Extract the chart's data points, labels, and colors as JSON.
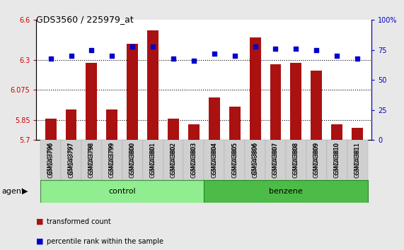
{
  "title": "GDS3560 / 225979_at",
  "samples": [
    "GSM243796",
    "GSM243797",
    "GSM243798",
    "GSM243799",
    "GSM243800",
    "GSM243801",
    "GSM243802",
    "GSM243803",
    "GSM243804",
    "GSM243805",
    "GSM243806",
    "GSM243807",
    "GSM243808",
    "GSM243809",
    "GSM243810",
    "GSM243811"
  ],
  "bar_values": [
    5.86,
    5.93,
    6.28,
    5.93,
    6.42,
    6.52,
    5.86,
    5.82,
    6.02,
    5.95,
    6.47,
    6.27,
    6.28,
    6.22,
    5.82,
    5.79
  ],
  "percentile_values": [
    68,
    70,
    75,
    70,
    78,
    78,
    68,
    66,
    72,
    70,
    78,
    76,
    76,
    75,
    70,
    68
  ],
  "ylim_left": [
    5.7,
    6.6
  ],
  "ylim_right": [
    0,
    100
  ],
  "yticks_left": [
    5.7,
    5.85,
    6.075,
    6.3,
    6.6
  ],
  "ytick_labels_left": [
    "5.7",
    "5.85",
    "6.075",
    "6.3",
    "6.6"
  ],
  "yticks_right": [
    0,
    25,
    50,
    75,
    100
  ],
  "ytick_labels_right": [
    "0",
    "25",
    "50",
    "75",
    "100%"
  ],
  "hlines": [
    5.85,
    6.075,
    6.3
  ],
  "bar_color": "#AA1111",
  "percentile_color": "#0000CC",
  "bar_width": 0.55,
  "control_color": "#90EE90",
  "benzene_color": "#4CBB47",
  "agent_label": "agent",
  "control_label": "control",
  "benzene_label": "benzene",
  "legend_bar_label": "transformed count",
  "legend_pct_label": "percentile rank within the sample",
  "background_color": "#e8e8e8",
  "plot_bg_color": "#ffffff",
  "left_axis_color": "#CC0000",
  "right_axis_color": "#0000CC"
}
